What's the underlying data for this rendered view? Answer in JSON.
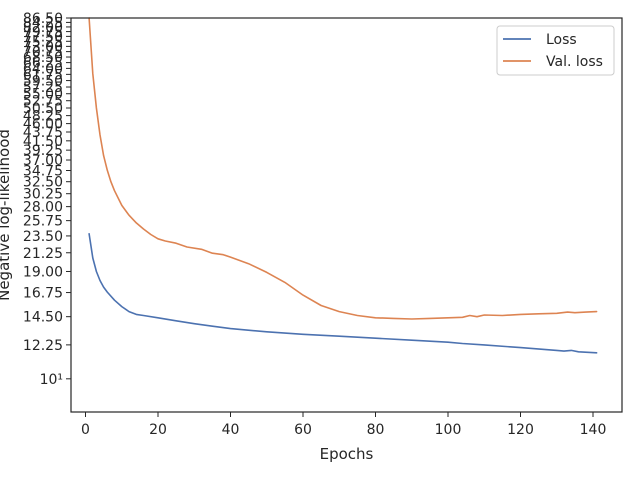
{
  "chart_data": {
    "type": "line",
    "xlabel": "Epochs",
    "ylabel": "Negative log-likelihood",
    "xlim": [
      -4,
      148
    ],
    "ylim": [
      8.2,
      86.5
    ],
    "yscale": "log",
    "x_ticks": [
      0,
      20,
      40,
      60,
      80,
      100,
      120,
      140
    ],
    "x_tick_labels": [
      "0",
      "20",
      "40",
      "60",
      "80",
      "100",
      "120",
      "140"
    ],
    "y_ticks": [
      10,
      12.25,
      14.5,
      16.75,
      19.0,
      21.25,
      23.5,
      25.75,
      28.0,
      30.25,
      32.5,
      34.75,
      37.0,
      39.25,
      41.5,
      43.75,
      46.0,
      48.25,
      50.5,
      52.75,
      55.0,
      57.25,
      59.5,
      61.75,
      64.0,
      66.25,
      68.5,
      70.75,
      73.0,
      75.25,
      77.5,
      79.75,
      82.0,
      84.25,
      86.5
    ],
    "y_tick_labels": [
      "10¹",
      "12.25",
      "14.50",
      "16.75",
      "19.00",
      "21.25",
      "23.50",
      "25.75",
      "28.00",
      "30.25",
      "32.50",
      "34.75",
      "37.00",
      "39.25",
      "41.50",
      "43.75",
      "46.00",
      "48.25",
      "50.50",
      "52.75",
      "55.00",
      "57.25",
      "59.50",
      "61.75",
      "64.00",
      "66.25",
      "68.50",
      "70.75",
      "73.00",
      "75.25",
      "77.50",
      "79.75",
      "82.00",
      "84.25",
      "86.50"
    ],
    "legend_position": "top-right",
    "grid": false,
    "series": [
      {
        "name": "Loss",
        "color": "#4c72b0",
        "x": [
          1,
          2,
          3,
          4,
          5,
          6,
          8,
          10,
          12,
          14,
          16,
          20,
          25,
          30,
          35,
          40,
          50,
          60,
          70,
          80,
          90,
          100,
          104,
          110,
          120,
          130,
          132,
          134,
          136,
          141
        ],
        "y": [
          23.8,
          20.6,
          19.0,
          18.0,
          17.3,
          16.8,
          16.0,
          15.4,
          14.95,
          14.7,
          14.6,
          14.4,
          14.15,
          13.9,
          13.7,
          13.5,
          13.25,
          13.05,
          12.9,
          12.75,
          12.6,
          12.45,
          12.35,
          12.25,
          12.05,
          11.85,
          11.8,
          11.85,
          11.75,
          11.68
        ]
      },
      {
        "name": "Val. loss",
        "color": "#dd8452",
        "x": [
          1,
          2,
          3,
          4,
          5,
          6,
          7,
          8,
          10,
          12,
          14,
          16,
          18,
          20,
          22,
          25,
          28,
          32,
          35,
          38,
          40,
          45,
          50,
          55,
          60,
          65,
          70,
          75,
          80,
          85,
          90,
          95,
          100,
          104,
          106,
          108,
          110,
          115,
          120,
          125,
          130,
          133,
          135,
          138,
          141
        ],
        "y": [
          86.5,
          62.0,
          50.5,
          43.0,
          38.0,
          34.8,
          32.5,
          30.8,
          28.2,
          26.6,
          25.4,
          24.5,
          23.7,
          23.1,
          22.8,
          22.5,
          22.0,
          21.7,
          21.2,
          21.0,
          20.7,
          19.9,
          18.9,
          17.8,
          16.5,
          15.5,
          14.95,
          14.6,
          14.4,
          14.35,
          14.3,
          14.35,
          14.4,
          14.45,
          14.6,
          14.5,
          14.65,
          14.6,
          14.7,
          14.75,
          14.8,
          14.9,
          14.85,
          14.9,
          14.95
        ]
      }
    ]
  }
}
